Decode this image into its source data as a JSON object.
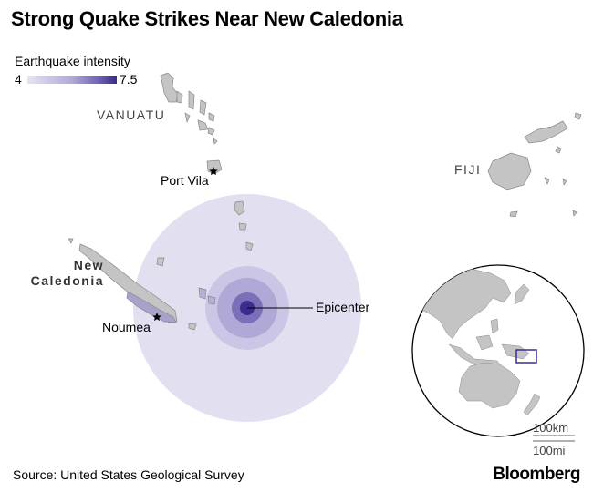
{
  "title": "Strong Quake Strikes Near New Caledonia",
  "legend": {
    "title": "Earthquake intensity",
    "min": "4",
    "max": "7.5",
    "colors": [
      "#e4e1f2",
      "#b2aad6",
      "#7b6fb8",
      "#3f2d91"
    ]
  },
  "labels": {
    "vanuatu": "VANUATU",
    "port_vila": "Port Vila",
    "fiji": "FIJI",
    "new_caledonia_line1": "New",
    "new_caledonia_line2": "Caledonia",
    "noumea": "Noumea",
    "epicenter": "Epicenter"
  },
  "scale": {
    "km": "100km",
    "mi": "100mi"
  },
  "source": "Source: United States Geological Survey",
  "brand": "Bloomberg",
  "colors": {
    "land": "#c4c4c4",
    "land_stroke": "#888888",
    "intensity_4": "#e2e0f0",
    "intensity_5": "#cbc6e5",
    "intensity_6": "#b0a8d6",
    "intensity_7": "#7c6fb9",
    "intensity_7_5": "#3d2c8e",
    "inset_box": "#3d2c8e"
  }
}
